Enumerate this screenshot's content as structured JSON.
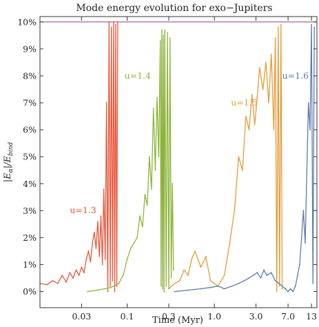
{
  "chart_data": {
    "type": "line",
    "title": "Mode energy evolution for exo−Jupiters",
    "xlabel": "Time (Myr)",
    "ylabel": "|E",
    "ylabel_sub": "α",
    "ylabel_mid": "|/E",
    "ylabel_sub2": "bind",
    "x_scale": "log",
    "xlim": [
      0.01,
      15
    ],
    "ylim": [
      -0.006,
      0.102
    ],
    "x_ticks": [
      0.03,
      0.1,
      0.3,
      1.0,
      3.0,
      7.0,
      13
    ],
    "x_tick_labels": [
      "0.03",
      "0.1",
      "0.3",
      "1.0",
      "3.0",
      "7.0",
      "13"
    ],
    "y_ticks": [
      0,
      0.01,
      0.02,
      0.03,
      0.04,
      0.05,
      0.06,
      0.07,
      0.08,
      0.09,
      0.1
    ],
    "y_tick_labels": [
      "0%",
      "1%",
      "2%",
      "3%",
      "4%",
      "5%",
      "6%",
      "7%",
      "8%",
      "9%",
      "10%"
    ],
    "threshold": 0.1,
    "grid": false,
    "colors": {
      "u13": "#e8563a",
      "u14": "#8db33a",
      "u15": "#e69a35",
      "u16": "#5a7bb0",
      "threshold": "#9b4f9b",
      "axis": "#333333"
    },
    "series": [
      {
        "name": "u=1.3",
        "color": "#e8563a",
        "label_at": [
          0.022,
          0.029
        ],
        "points": [
          [
            0.01,
            0.003
          ],
          [
            0.012,
            0.0025
          ],
          [
            0.014,
            0.004
          ],
          [
            0.016,
            0.003
          ],
          [
            0.018,
            0.006
          ],
          [
            0.02,
            0.0035
          ],
          [
            0.022,
            0.007
          ],
          [
            0.024,
            0.005
          ],
          [
            0.026,
            0.008
          ],
          [
            0.028,
            0.006
          ],
          [
            0.03,
            0.009
          ],
          [
            0.032,
            0.007
          ],
          [
            0.034,
            0.012
          ],
          [
            0.036,
            0.015
          ],
          [
            0.038,
            0.011
          ],
          [
            0.04,
            0.018
          ],
          [
            0.042,
            0.022
          ],
          [
            0.044,
            0.016
          ],
          [
            0.046,
            0.026
          ],
          [
            0.048,
            0.013
          ],
          [
            0.05,
            0.028
          ],
          [
            0.052,
            0.01
          ],
          [
            0.054,
            0.038
          ],
          [
            0.056,
            0.012
          ],
          [
            0.058,
            0.07
          ],
          [
            0.06,
            0.0
          ],
          [
            0.062,
            0.1
          ],
          [
            0.064,
            0.002
          ],
          [
            0.066,
            0.098
          ],
          [
            0.068,
            0.004
          ],
          [
            0.07,
            0.1
          ],
          [
            0.072,
            0.0
          ],
          [
            0.074,
            0.099
          ],
          [
            0.076,
            0.002
          ],
          [
            0.078,
            0.1
          ]
        ]
      },
      {
        "name": "u=1.4",
        "color": "#8db33a",
        "label_at": [
          0.093,
          0.079
        ],
        "points": [
          [
            0.035,
            0.0
          ],
          [
            0.045,
            0.0005
          ],
          [
            0.055,
            0.001
          ],
          [
            0.065,
            0.0015
          ],
          [
            0.08,
            0.003
          ],
          [
            0.09,
            0.006
          ],
          [
            0.1,
            0.012
          ],
          [
            0.11,
            0.016
          ],
          [
            0.12,
            0.018
          ],
          [
            0.13,
            0.02
          ],
          [
            0.14,
            0.028
          ],
          [
            0.15,
            0.024
          ],
          [
            0.16,
            0.036
          ],
          [
            0.17,
            0.032
          ],
          [
            0.18,
            0.05
          ],
          [
            0.19,
            0.038
          ],
          [
            0.2,
            0.068
          ],
          [
            0.21,
            0.045
          ],
          [
            0.22,
            0.072
          ],
          [
            0.23,
            0.05
          ],
          [
            0.24,
            0.093
          ],
          [
            0.245,
            0.002
          ],
          [
            0.25,
            0.097
          ],
          [
            0.255,
            0.001
          ],
          [
            0.26,
            0.095
          ],
          [
            0.265,
            0.0
          ],
          [
            0.27,
            0.097
          ],
          [
            0.28,
            0.002
          ],
          [
            0.29,
            0.096
          ],
          [
            0.3,
            0.001
          ],
          [
            0.31,
            0.094
          ],
          [
            0.32,
            0.005
          ],
          [
            0.33,
            0.04
          ],
          [
            0.34,
            0.008
          ]
        ]
      },
      {
        "name": "u=1.5",
        "color": "#e69a35",
        "label_at": [
          1.55,
          0.069
        ],
        "points": [
          [
            0.3,
            0.001
          ],
          [
            0.35,
            0.003
          ],
          [
            0.4,
            0.004
          ],
          [
            0.45,
            0.008
          ],
          [
            0.5,
            0.006
          ],
          [
            0.55,
            0.012
          ],
          [
            0.6,
            0.015
          ],
          [
            0.7,
            0.009
          ],
          [
            0.8,
            0.013
          ],
          [
            0.9,
            0.004
          ],
          [
            1.0,
            0.003
          ],
          [
            1.1,
            0.002
          ],
          [
            1.3,
            0.006
          ],
          [
            1.5,
            0.018
          ],
          [
            1.7,
            0.03
          ],
          [
            1.9,
            0.05
          ],
          [
            2.1,
            0.045
          ],
          [
            2.3,
            0.065
          ],
          [
            2.5,
            0.06
          ],
          [
            2.7,
            0.073
          ],
          [
            2.9,
            0.062
          ],
          [
            3.1,
            0.072
          ],
          [
            3.3,
            0.083
          ],
          [
            3.6,
            0.075
          ],
          [
            3.9,
            0.085
          ],
          [
            4.2,
            0.07
          ],
          [
            4.5,
            0.088
          ],
          [
            4.8,
            0.06
          ],
          [
            5.0,
            0.094
          ],
          [
            5.2,
            0.0
          ],
          [
            5.4,
            0.098
          ],
          [
            5.6,
            0.002
          ],
          [
            5.8,
            0.099
          ],
          [
            6.0,
            0.001
          ]
        ]
      },
      {
        "name": "u=1.6",
        "color": "#5a7bb0",
        "label_at": [
          6.0,
          0.079
        ],
        "points": [
          [
            0.35,
            0.0
          ],
          [
            0.5,
            0.0005
          ],
          [
            0.7,
            0.001
          ],
          [
            0.9,
            0.0015
          ],
          [
            1.1,
            0.002
          ],
          [
            1.3,
            0.001
          ],
          [
            1.6,
            0.002
          ],
          [
            1.9,
            0.003
          ],
          [
            2.2,
            0.004
          ],
          [
            2.5,
            0.005
          ],
          [
            2.8,
            0.006
          ],
          [
            3.1,
            0.007
          ],
          [
            3.4,
            0.005
          ],
          [
            3.7,
            0.008
          ],
          [
            4.0,
            0.006
          ],
          [
            4.5,
            0.007
          ],
          [
            5.0,
            0.004
          ],
          [
            5.5,
            0.003
          ],
          [
            6.0,
            0.002
          ],
          [
            6.5,
            0.001
          ],
          [
            7.0,
            0.0
          ],
          [
            7.5,
            0.001
          ],
          [
            8.0,
            0.0
          ],
          [
            8.5,
            0.002
          ],
          [
            9.0,
            0.006
          ],
          [
            9.5,
            0.01
          ],
          [
            10.0,
            0.02
          ],
          [
            10.5,
            0.03
          ],
          [
            11.0,
            0.018
          ],
          [
            11.5,
            0.045
          ],
          [
            12.0,
            0.07
          ],
          [
            12.5,
            0.06
          ],
          [
            13.0,
            0.099
          ],
          [
            13.5,
            0.003
          ],
          [
            14.0,
            0.098
          ]
        ]
      }
    ]
  }
}
